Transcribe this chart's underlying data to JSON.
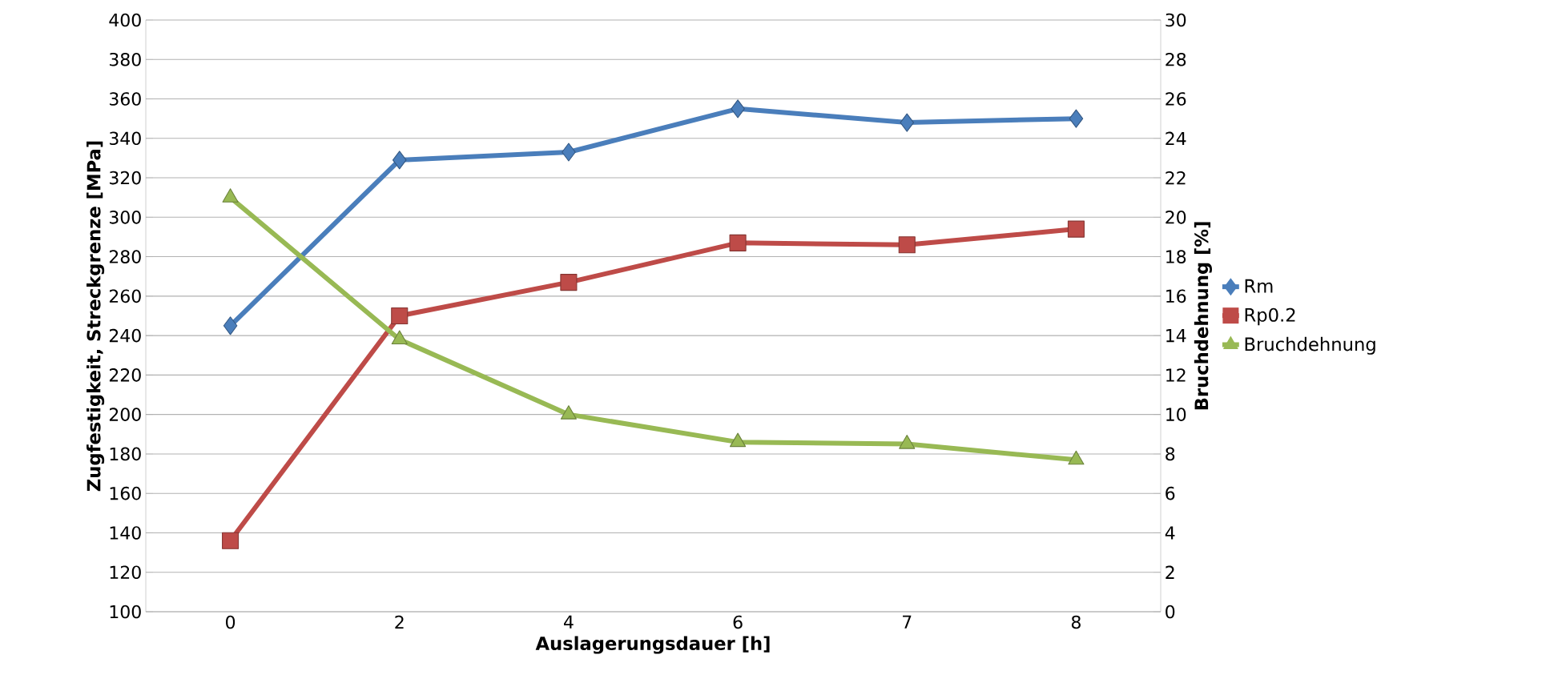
{
  "chart_data": {
    "type": "line",
    "xlabel": "Auslagerungsdauer [h]",
    "ylabel": "Zugfestigkeit, Streckgrenze [MPa]",
    "y2label": "Bruchdehnung [%]",
    "categories": [
      "0",
      "2",
      "4",
      "6",
      "7",
      "8"
    ],
    "series": [
      {
        "name": "Rm",
        "color": "#4a7ebb",
        "marker": "diamond",
        "values": [
          245,
          329,
          333,
          355,
          348,
          350
        ]
      },
      {
        "name": "Rp0.2",
        "color": "#be4b48",
        "marker": "square",
        "values": [
          136,
          250,
          267,
          287,
          286,
          294
        ]
      },
      {
        "name": "Bruchdehnung",
        "color": "#98b954",
        "marker": "triangle",
        "axis": "y2",
        "values": [
          21.0,
          13.8,
          10.0,
          8.6,
          8.5,
          7.7
        ]
      }
    ],
    "ylim": [
      100,
      400
    ],
    "yticks": [
      100,
      120,
      140,
      160,
      180,
      200,
      220,
      240,
      260,
      280,
      300,
      320,
      340,
      360,
      380,
      400
    ],
    "y2lim": [
      0,
      30
    ],
    "y2ticks": [
      0,
      2,
      4,
      6,
      8,
      10,
      12,
      14,
      16,
      18,
      20,
      22,
      24,
      26,
      28,
      30
    ],
    "grid": "y",
    "legend": "right",
    "line_style": "solid"
  }
}
